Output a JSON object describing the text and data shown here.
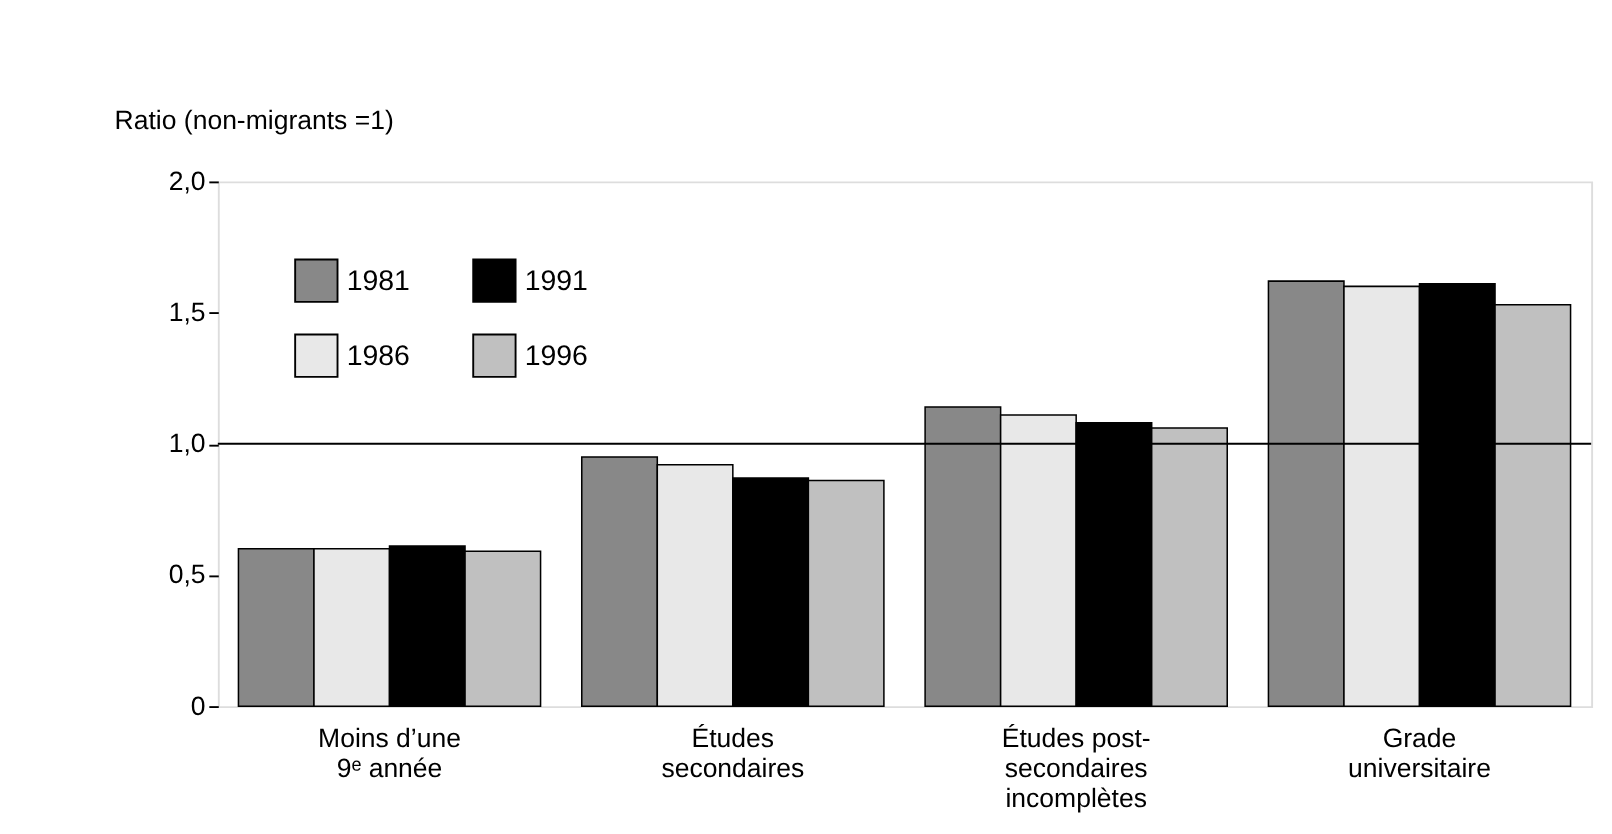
{
  "chart_data": {
    "type": "bar",
    "ylabel": "Ratio (non-migrants =1)",
    "categories": [
      "Moins d’une\n9ᵉ année",
      "Études\nsecondaires",
      "Études post-\nsecondaires\nincomplètes",
      "Grade\nuniversitaire"
    ],
    "series": [
      {
        "name": "1981",
        "color": "#888888",
        "values": [
          0.6,
          0.95,
          1.14,
          1.62
        ]
      },
      {
        "name": "1986",
        "color": "#e8e8e8",
        "values": [
          0.6,
          0.92,
          1.11,
          1.6
        ]
      },
      {
        "name": "1991",
        "color": "#000000",
        "values": [
          0.61,
          0.87,
          1.08,
          1.61
        ]
      },
      {
        "name": "1996",
        "color": "#c0c0c0",
        "values": [
          0.59,
          0.86,
          1.06,
          1.53
        ]
      }
    ],
    "ylim": [
      0,
      2
    ],
    "yticks": [
      0,
      {
        "value": 0.5,
        "label": "0,5"
      },
      {
        "value": 1,
        "label": "1,0"
      },
      {
        "value": 1.5,
        "label": "1,5"
      },
      {
        "value": 2,
        "label": "2,0"
      }
    ],
    "ref_lines": [
      {
        "axis": "y",
        "value": 1,
        "label": null,
        "color": "#000000"
      }
    ],
    "grid": false,
    "legend": "top left"
  }
}
